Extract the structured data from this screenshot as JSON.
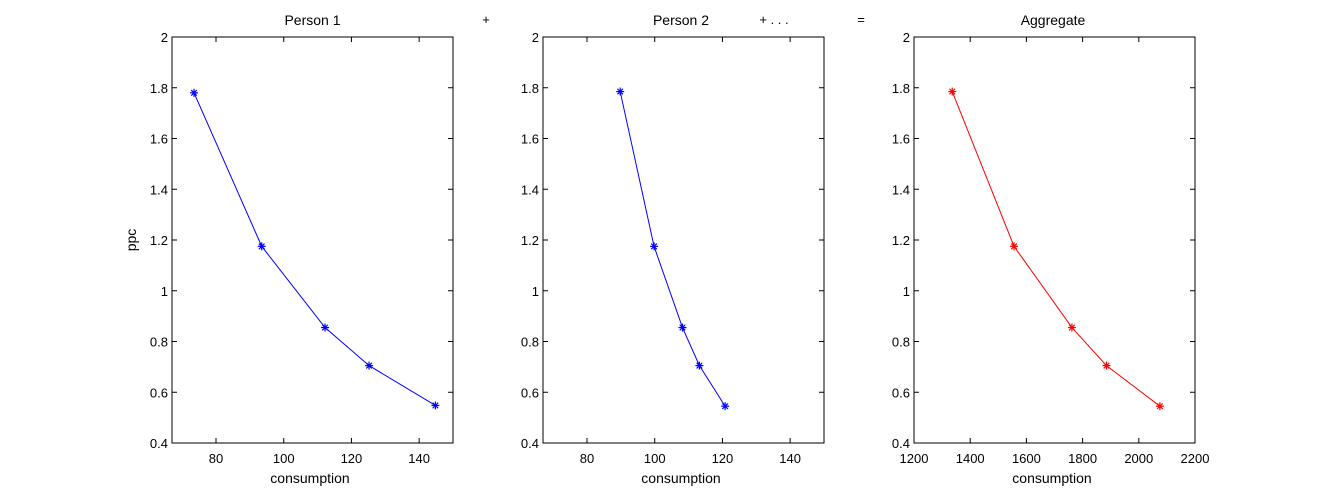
{
  "operators": [
    "+",
    "+ . . .",
    "="
  ],
  "chart_data": [
    {
      "type": "line",
      "title": "Person 1",
      "xlabel": "consumption",
      "ylabel": "ppc",
      "xlim": [
        67,
        150
      ],
      "ylim": [
        0.4,
        2
      ],
      "xticks": [
        80,
        100,
        120,
        140
      ],
      "yticks": [
        0.4,
        0.6,
        0.8,
        1,
        1.2,
        1.4,
        1.6,
        1.8,
        2
      ],
      "series": [
        {
          "color": "#0000ff",
          "marker": "asterisk",
          "points": [
            {
              "x": 73.5,
              "y": 1.78
            },
            {
              "x": 93.5,
              "y": 1.175
            },
            {
              "x": 112.2,
              "y": 0.855
            },
            {
              "x": 125.2,
              "y": 0.705
            },
            {
              "x": 144.8,
              "y": 0.548
            }
          ]
        }
      ]
    },
    {
      "type": "line",
      "title": "Person 2",
      "xlabel": "consumption",
      "ylabel": "",
      "xlim": [
        67,
        150
      ],
      "ylim": [
        0.4,
        2
      ],
      "xticks": [
        80,
        100,
        120,
        140
      ],
      "yticks": [
        0.4,
        0.6,
        0.8,
        1,
        1.2,
        1.4,
        1.6,
        1.8,
        2
      ],
      "series": [
        {
          "color": "#0000ff",
          "marker": "asterisk",
          "points": [
            {
              "x": 89.8,
              "y": 1.785
            },
            {
              "x": 99.8,
              "y": 1.175
            },
            {
              "x": 108.2,
              "y": 0.855
            },
            {
              "x": 113.2,
              "y": 0.705
            },
            {
              "x": 120.8,
              "y": 0.545
            }
          ]
        }
      ]
    },
    {
      "type": "line",
      "title": "Aggregate",
      "xlabel": "consumption",
      "ylabel": "",
      "xlim": [
        1200,
        2200
      ],
      "ylim": [
        0.4,
        2
      ],
      "xticks": [
        1200,
        1400,
        1600,
        1800,
        2000,
        2200
      ],
      "yticks": [
        0.4,
        0.6,
        0.8,
        1,
        1.2,
        1.4,
        1.6,
        1.8,
        2
      ],
      "series": [
        {
          "color": "#ff0000",
          "marker": "asterisk",
          "points": [
            {
              "x": 1336,
              "y": 1.785
            },
            {
              "x": 1556,
              "y": 1.175
            },
            {
              "x": 1762,
              "y": 0.855
            },
            {
              "x": 1885,
              "y": 0.705
            },
            {
              "x": 2075,
              "y": 0.545
            }
          ]
        }
      ]
    }
  ]
}
